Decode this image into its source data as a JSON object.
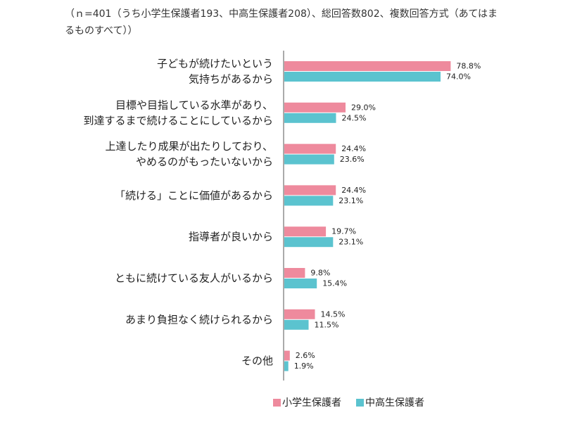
{
  "chart_data": {
    "type": "hbar",
    "subtitle": "（ｎ=401（うち小学生保護者193、中高生保護者208）、総回答数802、複数回答方式（あてはまるものすべて））",
    "categories": [
      [
        "子どもが続けたいという",
        "気持ちがあるから"
      ],
      [
        "目標や目指している水準があり、",
        "到達するまで続けることにしているから"
      ],
      [
        "上達したり成果が出たりしており、",
        "やめるのがもったいないから"
      ],
      [
        "「続ける」ことに価値があるから"
      ],
      [
        "指導者が良いから"
      ],
      [
        "ともに続けている友人がいるから"
      ],
      [
        "あまり負担なく続けられるから"
      ],
      [
        "その他"
      ]
    ],
    "series": [
      {
        "name": "小学生保護者",
        "color": "#ee8a9d",
        "values": [
          78.8,
          29.0,
          24.4,
          24.4,
          19.7,
          9.8,
          14.5,
          2.6
        ],
        "value_labels": [
          "78.8%",
          "29.0%",
          "24.4%",
          "24.4%",
          "19.7%",
          "9.8%",
          "14.5%",
          "2.6%"
        ]
      },
      {
        "name": "中高生保護者",
        "color": "#5bc3cf",
        "values": [
          74.0,
          24.5,
          23.6,
          23.1,
          23.1,
          15.4,
          11.5,
          1.9
        ],
        "value_labels": [
          "74.0%",
          "24.5%",
          "23.6%",
          "23.1%",
          "23.1%",
          "15.4%",
          "11.5%",
          "1.9%"
        ]
      }
    ],
    "legend": "bottom"
  }
}
